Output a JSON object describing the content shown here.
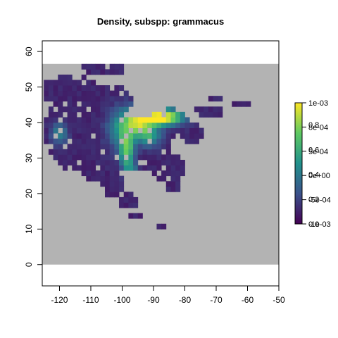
{
  "chart_data": {
    "type": "heatmap",
    "title": "Density, subspp: grammacus",
    "xlabel": "",
    "ylabel": "",
    "x_ticks": [
      -120,
      -110,
      -100,
      -90,
      -80,
      -70,
      -60,
      -50
    ],
    "y_ticks": [
      0,
      10,
      20,
      30,
      40,
      50,
      60
    ],
    "xlim": [
      -125.5,
      -50
    ],
    "ylim": [
      -6,
      63
    ],
    "background_extent": {
      "x": [
        -125.5,
        -50
      ],
      "y": [
        0,
        56.5
      ]
    },
    "background_color": "#b3b3b3",
    "cell_size": 1.5,
    "colorbar": {
      "colors": [
        "#440154",
        "#3b528b",
        "#21918c",
        "#5ec962",
        "#fde725"
      ],
      "ticks_right": [
        "1e-03",
        "8e-04",
        "5e-04",
        "0e+00",
        "-5e-04",
        "-1e-03"
      ],
      "ticks_left": [
        "0.8",
        "0.6",
        "0.4",
        "0.2",
        "0.0"
      ]
    },
    "density_model": {
      "region": [
        {
          "cx": -113,
          "cy": 38,
          "rx": 12,
          "ry": 12
        },
        {
          "cx": -117,
          "cy": 49,
          "rx": 9,
          "ry": 4.5
        },
        {
          "cx": -105,
          "cy": 46,
          "rx": 8,
          "ry": 5
        },
        {
          "cx": -108,
          "cy": 30,
          "rx": 7,
          "ry": 7
        },
        {
          "cx": -103,
          "cy": 24,
          "rx": 3.5,
          "ry": 5.5
        },
        {
          "cx": -98,
          "cy": 18,
          "rx": 3,
          "ry": 2.5
        },
        {
          "cx": -94,
          "cy": 34,
          "rx": 10,
          "ry": 8
        },
        {
          "cx": -85,
          "cy": 40,
          "rx": 7,
          "ry": 4
        },
        {
          "cx": -78,
          "cy": 37,
          "rx": 4,
          "ry": 3.5
        },
        {
          "cx": -72,
          "cy": 43,
          "rx": 5,
          "ry": 2
        },
        {
          "cx": -62,
          "cy": 45,
          "rx": 3.5,
          "ry": 1.2
        },
        {
          "cx": -106,
          "cy": 55,
          "rx": 8,
          "ry": 1.6
        },
        {
          "cx": -85,
          "cy": 27,
          "rx": 5,
          "ry": 4.5
        },
        {
          "cx": -96,
          "cy": 14,
          "rx": 2,
          "ry": 1.2
        },
        {
          "cx": -88,
          "cy": 11,
          "rx": 1.5,
          "ry": 0.9
        },
        {
          "cx": -84,
          "cy": 22,
          "rx": 2.5,
          "ry": 1.5
        },
        {
          "cx": -70,
          "cy": 47,
          "rx": 2,
          "ry": 1
        }
      ],
      "peaks": [
        {
          "cx": -87,
          "cy": 41.5,
          "sx": 4.5,
          "sy": 1.6,
          "a": 0.95
        },
        {
          "cx": -95,
          "cy": 40,
          "sx": 3.5,
          "sy": 3,
          "a": 0.7
        },
        {
          "cx": -98.5,
          "cy": 32,
          "sx": 1.6,
          "sy": 3.5,
          "a": 0.6
        },
        {
          "cx": -120,
          "cy": 37,
          "sx": 1.8,
          "sy": 2.2,
          "a": 0.35
        },
        {
          "cx": -101,
          "cy": 38,
          "sx": 3,
          "sy": 4,
          "a": 0.3
        },
        {
          "cx": -97,
          "cy": 26,
          "sx": 1.5,
          "sy": 2,
          "a": 0.3
        },
        {
          "cx": -91,
          "cy": 36,
          "sx": 2.5,
          "sy": 2,
          "a": 0.35
        }
      ],
      "base": 0.08,
      "seed": 7
    }
  }
}
